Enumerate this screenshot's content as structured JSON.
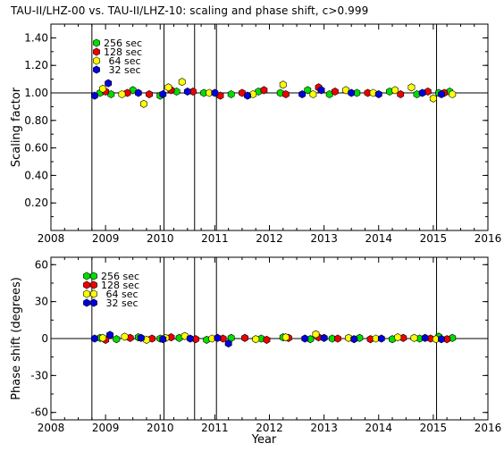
{
  "chart_data": [
    {
      "type": "scatter",
      "title": "TAU-II/LHZ-00 vs. TAU-II/LHZ-10: scaling and phase shift, c>0.999",
      "xlabel": "",
      "ylabel": "Scaling factor",
      "xlim": [
        2008,
        2016
      ],
      "ylim": [
        0.0,
        1.5
      ],
      "xticks": [
        "2008",
        "2009",
        "2010",
        "2011",
        "2012",
        "2013",
        "2014",
        "2015",
        "2016"
      ],
      "yticks": [
        "0.20",
        "0.40",
        "0.60",
        "0.80",
        "1.00",
        "1.20",
        "1.40"
      ],
      "reference_line": 1.0,
      "event_lines": [
        2008.75,
        2010.07,
        2010.63,
        2011.03,
        2015.06
      ],
      "legend_position": "top-left",
      "series": [
        {
          "name": "256 sec",
          "color": "#00dd00",
          "x": [
            2008.9,
            2009.1,
            2009.5,
            2010.0,
            2010.3,
            2010.8,
            2011.3,
            2011.8,
            2012.2,
            2012.7,
            2013.1,
            2013.6,
            2014.2,
            2014.7,
            2015.1,
            2015.3
          ],
          "y": [
            1.0,
            0.99,
            1.02,
            0.98,
            1.01,
            1.0,
            0.99,
            1.01,
            1.0,
            1.02,
            0.99,
            1.0,
            1.01,
            0.99,
            1.0,
            1.01
          ]
        },
        {
          "name": "128 sec",
          "color": "#ee0000",
          "x": [
            2009.0,
            2009.4,
            2009.8,
            2010.2,
            2010.6,
            2011.1,
            2011.5,
            2011.9,
            2012.3,
            2012.9,
            2013.2,
            2013.8,
            2014.4,
            2014.9,
            2015.2
          ],
          "y": [
            1.01,
            1.0,
            0.99,
            1.02,
            1.01,
            0.98,
            1.0,
            1.02,
            0.99,
            1.04,
            1.01,
            1.0,
            0.99,
            1.01,
            1.0
          ]
        },
        {
          "name": "64 sec",
          "color": "#ffff00",
          "x": [
            2008.95,
            2009.3,
            2009.7,
            2010.15,
            2010.4,
            2010.9,
            2011.7,
            2012.25,
            2012.8,
            2013.4,
            2013.9,
            2014.3,
            2014.6,
            2015.0,
            2015.35
          ],
          "y": [
            1.03,
            0.99,
            0.92,
            1.04,
            1.08,
            1.0,
            0.99,
            1.06,
            0.99,
            1.02,
            1.0,
            1.02,
            1.04,
            0.96,
            0.99
          ]
        },
        {
          "name": "32 sec",
          "color": "#0000dd",
          "x": [
            2008.8,
            2009.05,
            2009.6,
            2010.05,
            2010.5,
            2011.0,
            2011.6,
            2012.6,
            2012.95,
            2013.5,
            2014.0,
            2014.8,
            2015.15
          ],
          "y": [
            0.98,
            1.07,
            1.0,
            0.99,
            1.01,
            1.0,
            0.98,
            0.99,
            1.02,
            1.0,
            0.99,
            1.0,
            0.99
          ]
        }
      ]
    },
    {
      "type": "scatter",
      "xlabel": "Year",
      "ylabel": "Phase shift (degrees)",
      "xlim": [
        2008,
        2016
      ],
      "ylim": [
        -66,
        66
      ],
      "xticks": [
        "2008",
        "2009",
        "2010",
        "2011",
        "2012",
        "2013",
        "2014",
        "2015",
        "2016"
      ],
      "yticks": [
        "-60",
        "-30",
        "0",
        "30",
        "60"
      ],
      "reference_line": 0,
      "event_lines": [
        2008.75,
        2010.07,
        2010.63,
        2011.03,
        2015.06
      ],
      "legend_position": "top-left",
      "series": [
        {
          "name": "256 sec",
          "color": "#00dd00",
          "x": [
            2008.9,
            2009.2,
            2009.6,
            2010.0,
            2010.35,
            2010.85,
            2011.3,
            2011.85,
            2012.25,
            2012.75,
            2013.15,
            2013.65,
            2014.25,
            2014.75,
            2015.1,
            2015.35
          ],
          "y": [
            0.5,
            -0.5,
            1.0,
            0.0,
            0.5,
            -1.0,
            0.5,
            0.0,
            1.0,
            -0.5,
            0.0,
            0.5,
            -0.5,
            0.0,
            1.5,
            0.5
          ]
        },
        {
          "name": "128 sec",
          "color": "#ee0000",
          "x": [
            2009.0,
            2009.45,
            2009.85,
            2010.2,
            2010.65,
            2011.15,
            2011.55,
            2011.95,
            2012.35,
            2012.9,
            2013.25,
            2013.85,
            2014.45,
            2014.95,
            2015.25
          ],
          "y": [
            -1.0,
            0.5,
            0.0,
            1.0,
            -0.5,
            0.0,
            0.5,
            -1.0,
            0.5,
            1.0,
            0.0,
            -0.5,
            0.5,
            0.0,
            -0.5
          ]
        },
        {
          "name": "64 sec",
          "color": "#ffff00",
          "x": [
            2008.95,
            2009.35,
            2009.75,
            2010.1,
            2010.45,
            2010.95,
            2011.75,
            2012.3,
            2012.85,
            2013.45,
            2013.95,
            2014.35,
            2014.65,
            2015.05
          ],
          "y": [
            0.5,
            1.5,
            -1.0,
            0.5,
            2.0,
            0.0,
            -0.5,
            1.0,
            3.5,
            0.5,
            0.0,
            1.0,
            0.5,
            -0.5
          ]
        },
        {
          "name": "32 sec",
          "color": "#0000dd",
          "x": [
            2008.8,
            2009.08,
            2009.65,
            2010.05,
            2010.55,
            2011.05,
            2011.25,
            2012.65,
            2013.0,
            2013.55,
            2014.05,
            2014.85,
            2015.15
          ],
          "y": [
            0.0,
            3.0,
            0.5,
            -0.5,
            0.0,
            0.5,
            -4.0,
            0.0,
            0.5,
            -0.5,
            0.0,
            0.5,
            -0.5
          ]
        }
      ]
    }
  ]
}
